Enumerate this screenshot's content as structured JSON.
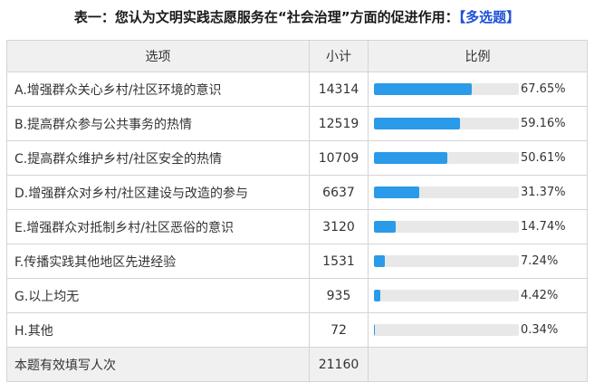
{
  "title": {
    "text": "表一：您认为文明实践志愿服务在“社会治理”方面的促进作用：",
    "tag": "【多选题】"
  },
  "table": {
    "headers": {
      "option": "选项",
      "count": "小计",
      "ratio": "比例"
    },
    "rows": [
      {
        "option": "A.增强群众关心乡村/社区环境的意识",
        "count": "14314",
        "percent": "67.65%",
        "value": 67.65
      },
      {
        "option": "B.提高群众参与公共事务的热情",
        "count": "12519",
        "percent": "59.16%",
        "value": 59.16
      },
      {
        "option": "C.提高群众维护乡村/社区安全的热情",
        "count": "10709",
        "percent": "50.61%",
        "value": 50.61
      },
      {
        "option": "D.增强群众对乡村/社区建设与改造的参与",
        "count": "6637",
        "percent": "31.37%",
        "value": 31.37
      },
      {
        "option": "E.增强群众对抵制乡村/社区恶俗的意识",
        "count": "3120",
        "percent": "14.74%",
        "value": 14.74
      },
      {
        "option": "F.传播实践其他地区先进经验",
        "count": "1531",
        "percent": "7.24%",
        "value": 7.24
      },
      {
        "option": "G.以上均无",
        "count": "935",
        "percent": "4.42%",
        "value": 4.42
      },
      {
        "option": "H.其他",
        "count": "72",
        "percent": "0.34%",
        "value": 0.34
      }
    ],
    "total": {
      "label": "本题有效填写人次",
      "count": "21160"
    }
  },
  "colors": {
    "bar_fill": "#2b9ae8",
    "bar_track": "#e8e8e8",
    "title_tag": "#1e50d8",
    "header_bg": "#f0f0f0"
  }
}
